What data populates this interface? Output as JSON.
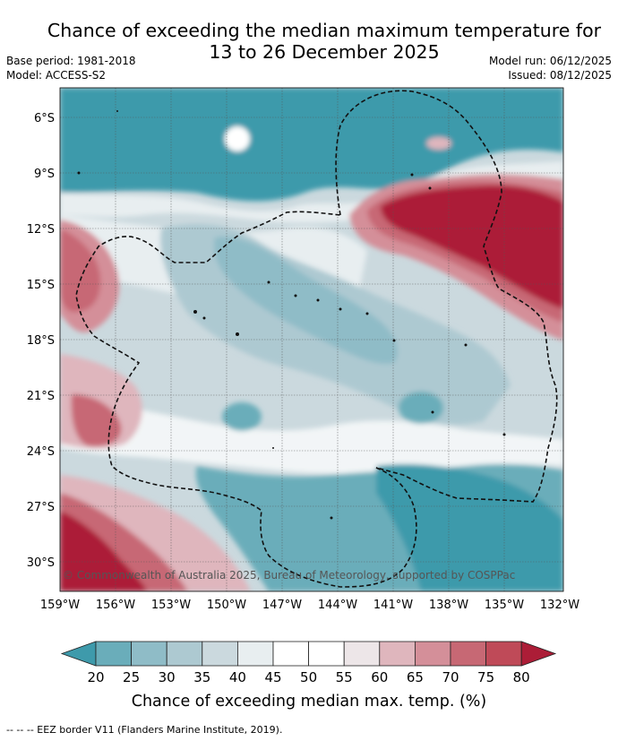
{
  "title_line1": "Chance of exceeding the median maximum temperature for",
  "title_line2": "13 to 26 December 2025",
  "base_period": "Base period: 1981-2018",
  "model": "Model: ACCESS-S2",
  "model_run": "Model run: 06/12/2025",
  "issued": "Issued: 08/12/2025",
  "copyright": "© Commonwealth of Australia 2025, Bureau of Meteorology, supported by COSPPac",
  "lat_labels": [
    "6°S",
    "9°S",
    "12°S",
    "15°S",
    "18°S",
    "21°S",
    "24°S",
    "27°S",
    "30°S"
  ],
  "lon_labels": [
    "159°W",
    "156°W",
    "153°W",
    "150°W",
    "147°W",
    "144°W",
    "141°W",
    "138°W",
    "135°W",
    "132°W"
  ],
  "colorbar": {
    "ticks": [
      "20",
      "25",
      "30",
      "35",
      "40",
      "45",
      "50",
      "55",
      "60",
      "65",
      "70",
      "75",
      "80"
    ],
    "colors": [
      "#3e9aab",
      "#6aadba",
      "#8fbcc7",
      "#adc9d1",
      "#cbd9de",
      "#e8eef0",
      "#ffffff",
      "#ffffff",
      "#ede6e8",
      "#dfb6bd",
      "#d48f99",
      "#c76874",
      "#bf4a58",
      "#ac1d37"
    ],
    "title": "Chance of exceeding median max. temp. (%)"
  },
  "footnote": "-- -- -- EEZ border V11 (Flanders Marine Institute, 2019)."
}
